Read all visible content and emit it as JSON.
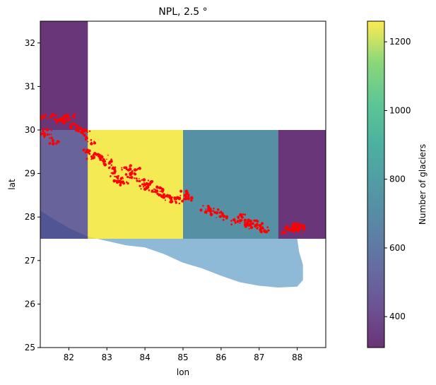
{
  "chart_data": {
    "type": "heatmap",
    "title": "NPL, 2.5 °",
    "xlabel": "lon",
    "ylabel": "lat",
    "xlim": [
      81.25,
      88.75
    ],
    "ylim": [
      25,
      32.5
    ],
    "xticks": [
      82,
      83,
      84,
      85,
      86,
      87,
      88
    ],
    "yticks": [
      25,
      26,
      27,
      28,
      29,
      30,
      31,
      32
    ],
    "cells": [
      {
        "lon_min": 81.25,
        "lon_max": 82.5,
        "lat_min": 30.0,
        "lat_max": 32.5,
        "count": 320
      },
      {
        "lon_min": 81.25,
        "lon_max": 82.5,
        "lat_min": 27.5,
        "lat_max": 30.0,
        "count": 500
      },
      {
        "lon_min": 82.5,
        "lon_max": 85.0,
        "lat_min": 27.5,
        "lat_max": 30.0,
        "count": 1250
      },
      {
        "lon_min": 85.0,
        "lon_max": 87.5,
        "lat_min": 27.5,
        "lat_max": 30.0,
        "count": 720
      },
      {
        "lon_min": 87.5,
        "lon_max": 88.75,
        "lat_min": 27.5,
        "lat_max": 30.0,
        "count": 320
      }
    ],
    "colorbar": {
      "label": "Number of glaciers",
      "range": [
        310,
        1260
      ],
      "ticks": [
        400,
        600,
        800,
        1000,
        1200
      ],
      "colormap": "viridis"
    },
    "country_outline": {
      "color": "#8ebad8",
      "points": [
        [
          81.25,
          28.15
        ],
        [
          81.6,
          27.95
        ],
        [
          82.0,
          27.75
        ],
        [
          82.5,
          27.55
        ],
        [
          83.0,
          27.45
        ],
        [
          83.5,
          27.35
        ],
        [
          84.0,
          27.3
        ],
        [
          84.5,
          27.15
        ],
        [
          85.0,
          26.95
        ],
        [
          85.5,
          26.82
        ],
        [
          86.0,
          26.65
        ],
        [
          86.5,
          26.5
        ],
        [
          87.0,
          26.42
        ],
        [
          87.5,
          26.38
        ],
        [
          88.0,
          26.4
        ],
        [
          88.15,
          26.55
        ],
        [
          88.15,
          26.9
        ],
        [
          88.05,
          27.2
        ],
        [
          88.0,
          27.5
        ],
        [
          87.5,
          27.5
        ],
        [
          81.25,
          27.5
        ]
      ]
    },
    "glacier_clusters": {
      "color": "#ff0000",
      "points": [
        [
          81.35,
          30.28
        ],
        [
          81.55,
          30.32
        ],
        [
          81.75,
          30.22
        ],
        [
          81.45,
          29.95
        ],
        [
          81.3,
          29.85
        ],
        [
          81.6,
          29.75
        ],
        [
          81.9,
          30.25
        ],
        [
          82.05,
          30.3
        ],
        [
          82.15,
          30.1
        ],
        [
          82.3,
          29.98
        ],
        [
          82.45,
          29.95
        ],
        [
          82.55,
          29.75
        ],
        [
          82.5,
          29.5
        ],
        [
          82.6,
          29.38
        ],
        [
          82.75,
          29.42
        ],
        [
          82.9,
          29.35
        ],
        [
          83.0,
          29.25
        ],
        [
          83.15,
          29.1
        ],
        [
          83.2,
          28.95
        ],
        [
          83.3,
          28.85
        ],
        [
          83.45,
          28.78
        ],
        [
          83.5,
          29.12
        ],
        [
          83.6,
          28.95
        ],
        [
          83.75,
          29.05
        ],
        [
          83.85,
          28.85
        ],
        [
          84.0,
          28.7
        ],
        [
          84.1,
          28.8
        ],
        [
          84.2,
          28.65
        ],
        [
          84.35,
          28.6
        ],
        [
          84.5,
          28.52
        ],
        [
          84.6,
          28.45
        ],
        [
          84.75,
          28.4
        ],
        [
          84.9,
          28.38
        ],
        [
          85.05,
          28.55
        ],
        [
          85.15,
          28.45
        ],
        [
          85.6,
          28.2
        ],
        [
          85.7,
          28.15
        ],
        [
          85.8,
          28.12
        ],
        [
          85.95,
          28.05
        ],
        [
          86.1,
          28.0
        ],
        [
          86.4,
          27.9
        ],
        [
          86.55,
          28.0
        ],
        [
          86.65,
          27.88
        ],
        [
          86.75,
          27.8
        ],
        [
          86.85,
          27.85
        ],
        [
          86.95,
          27.78
        ],
        [
          87.05,
          27.75
        ],
        [
          87.15,
          27.7
        ],
        [
          87.7,
          27.68
        ],
        [
          87.85,
          27.72
        ],
        [
          87.95,
          27.78
        ],
        [
          88.05,
          27.8
        ],
        [
          88.1,
          27.7
        ]
      ]
    }
  }
}
